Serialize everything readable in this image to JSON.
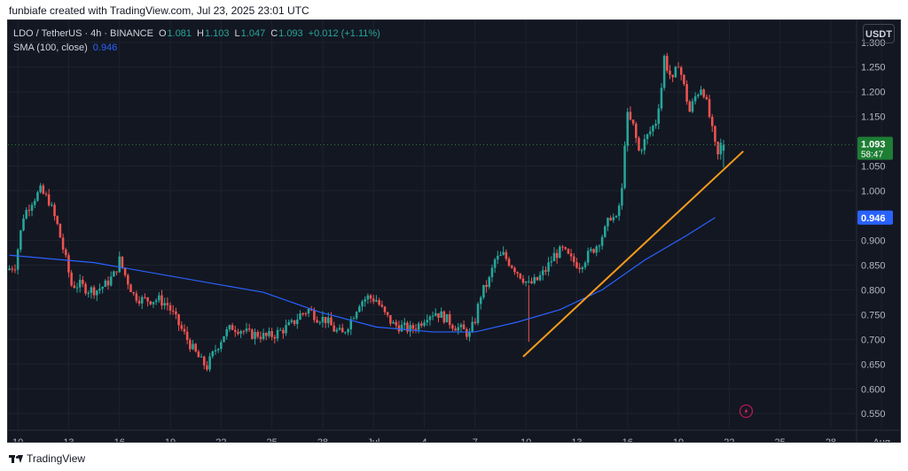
{
  "header": {
    "attribution": "funbiafe created with TradingView.com, Jul 23, 2025 23:01 UTC"
  },
  "legend": {
    "symbol": "LDO / TetherUS",
    "interval": "4h",
    "exchange": "BINANCE",
    "open_label": "O",
    "open": "1.081",
    "high_label": "H",
    "high": "1.103",
    "low_label": "L",
    "low": "1.047",
    "close_label": "C",
    "close": "1.093",
    "change": "+0.012 (+1.11%)",
    "sma_label": "SMA (100, close)",
    "sma_value": "0.946"
  },
  "currency_button": "USDT",
  "footer": {
    "brand": "TradingView"
  },
  "colors": {
    "background": "#131722",
    "up": "#26a69a",
    "down": "#ef5350",
    "sma": "#2962ff",
    "trendline": "#f89c1c",
    "price_badge": "#1e7e34"
  },
  "chart_data": {
    "type": "candlestick",
    "interval": "4h",
    "x_axis_ticks": [
      "10",
      "13",
      "16",
      "19",
      "22",
      "25",
      "28",
      "Jul",
      "4",
      "7",
      "10",
      "13",
      "16",
      "19",
      "22",
      "25",
      "28",
      "Aug"
    ],
    "y_axis_ticks": [
      "1.300",
      "1.250",
      "1.200",
      "1.150",
      "1.050",
      "1.000",
      "0.900",
      "0.850",
      "0.800",
      "0.750",
      "0.700",
      "0.650",
      "0.600",
      "0.550"
    ],
    "ylim": [
      0.52,
      1.33
    ],
    "last_price": {
      "value": 1.093,
      "label": "1.093",
      "countdown": "58:47"
    },
    "sma_badge": {
      "value": 0.946,
      "label": "0.946"
    },
    "price_path": [
      [
        0,
        0.84
      ],
      [
        3,
        0.85
      ],
      [
        6,
        0.95
      ],
      [
        9,
        0.98
      ],
      [
        12,
        1.0
      ],
      [
        15,
        0.98
      ],
      [
        18,
        0.93
      ],
      [
        21,
        0.86
      ],
      [
        23,
        0.81
      ],
      [
        26,
        0.81
      ],
      [
        29,
        0.8
      ],
      [
        32,
        0.8
      ],
      [
        35,
        0.81
      ],
      [
        38,
        0.83
      ],
      [
        40,
        0.86
      ],
      [
        42,
        0.83
      ],
      [
        45,
        0.79
      ],
      [
        48,
        0.78
      ],
      [
        51,
        0.78
      ],
      [
        54,
        0.78
      ],
      [
        57,
        0.77
      ],
      [
        60,
        0.74
      ],
      [
        63,
        0.71
      ],
      [
        66,
        0.68
      ],
      [
        69,
        0.655
      ],
      [
        71,
        0.645
      ],
      [
        74,
        0.68
      ],
      [
        77,
        0.71
      ],
      [
        80,
        0.725
      ],
      [
        83,
        0.72
      ],
      [
        86,
        0.71
      ],
      [
        89,
        0.71
      ],
      [
        92,
        0.705
      ],
      [
        95,
        0.71
      ],
      [
        98,
        0.72
      ],
      [
        101,
        0.73
      ],
      [
        104,
        0.75
      ],
      [
        107,
        0.76
      ],
      [
        110,
        0.745
      ],
      [
        113,
        0.74
      ],
      [
        116,
        0.72
      ],
      [
        119,
        0.71
      ],
      [
        122,
        0.74
      ],
      [
        125,
        0.775
      ],
      [
        128,
        0.785
      ],
      [
        131,
        0.78
      ],
      [
        134,
        0.75
      ],
      [
        137,
        0.73
      ],
      [
        140,
        0.725
      ],
      [
        143,
        0.72
      ],
      [
        146,
        0.73
      ],
      [
        149,
        0.75
      ],
      [
        152,
        0.755
      ],
      [
        155,
        0.745
      ],
      [
        158,
        0.73
      ],
      [
        161,
        0.72
      ],
      [
        164,
        0.71
      ],
      [
        166,
        0.74
      ],
      [
        168,
        0.79
      ],
      [
        171,
        0.82
      ],
      [
        173,
        0.86
      ],
      [
        176,
        0.87
      ],
      [
        179,
        0.85
      ],
      [
        182,
        0.83
      ],
      [
        185,
        0.81
      ],
      [
        188,
        0.82
      ],
      [
        191,
        0.84
      ],
      [
        194,
        0.87
      ],
      [
        197,
        0.88
      ],
      [
        200,
        0.86
      ],
      [
        203,
        0.85
      ],
      [
        206,
        0.87
      ],
      [
        209,
        0.89
      ],
      [
        212,
        0.92
      ],
      [
        214,
        0.95
      ],
      [
        216,
        0.94
      ],
      [
        218,
        1.0
      ],
      [
        219,
        1.1
      ],
      [
        220,
        1.15
      ],
      [
        222,
        1.13
      ],
      [
        224,
        1.08
      ],
      [
        226,
        1.1
      ],
      [
        228,
        1.12
      ],
      [
        230,
        1.14
      ],
      [
        232,
        1.21
      ],
      [
        233,
        1.27
      ],
      [
        234,
        1.25
      ],
      [
        236,
        1.22
      ],
      [
        238,
        1.26
      ],
      [
        240,
        1.21
      ],
      [
        242,
        1.16
      ],
      [
        244,
        1.19
      ],
      [
        246,
        1.21
      ],
      [
        247,
        1.2
      ],
      [
        249,
        1.15
      ],
      [
        251,
        1.09
      ],
      [
        252,
        1.07
      ],
      [
        253,
        1.093
      ]
    ],
    "series": [
      {
        "name": "SMA (100, close)",
        "type": "line",
        "points": [
          [
            0,
            0.87
          ],
          [
            30,
            0.855
          ],
          [
            60,
            0.825
          ],
          [
            90,
            0.795
          ],
          [
            110,
            0.755
          ],
          [
            130,
            0.725
          ],
          [
            150,
            0.715
          ],
          [
            165,
            0.715
          ],
          [
            180,
            0.735
          ],
          [
            195,
            0.76
          ],
          [
            210,
            0.8
          ],
          [
            225,
            0.86
          ],
          [
            240,
            0.91
          ],
          [
            250,
            0.946
          ]
        ]
      }
    ],
    "annotations": [
      {
        "type": "trendline",
        "color": "#f89c1c",
        "from": [
          182,
          0.665
        ],
        "to": [
          260,
          1.08
        ]
      },
      {
        "type": "wick",
        "bar": 184,
        "low": 0.695,
        "high": 0.81
      }
    ]
  }
}
